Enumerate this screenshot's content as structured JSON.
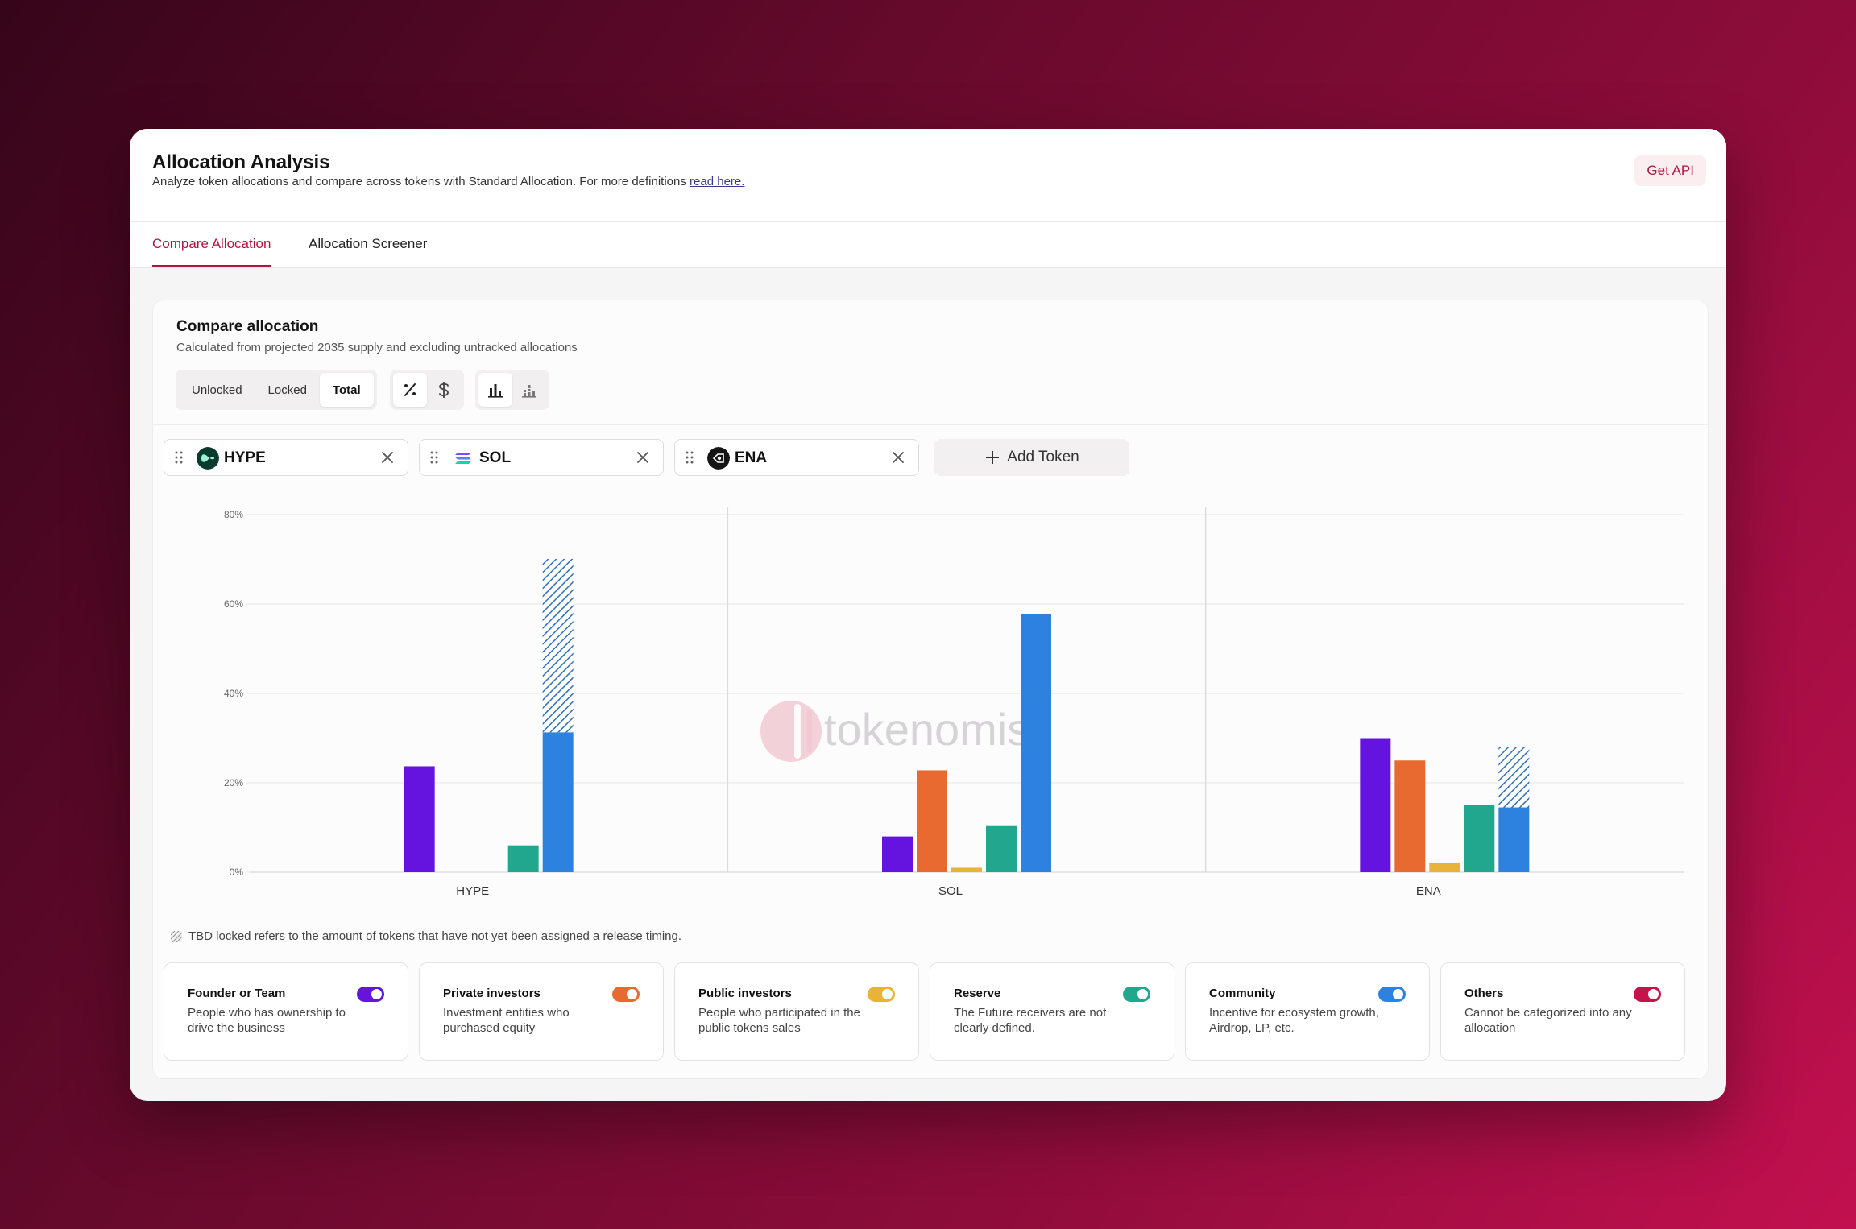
{
  "header": {
    "title": "Allocation Analysis",
    "subtitle": "Analyze token allocations and compare across tokens with Standard Allocation. For more definitions",
    "link_text": "read here.",
    "api_button": "Get API"
  },
  "tabs": [
    {
      "label": "Compare Allocation",
      "active": true
    },
    {
      "label": "Allocation Screener",
      "active": false
    }
  ],
  "card": {
    "title": "Compare allocation",
    "subtitle": "Calculated from projected 2035 supply and excluding untracked allocations"
  },
  "view_toggle": {
    "options": [
      "Unlocked",
      "Locked",
      "Total"
    ],
    "selected": "Total"
  },
  "unit_toggle": {
    "icons": [
      "percent-icon",
      "dollar-icon"
    ]
  },
  "chart_type_toggle": {
    "icons": [
      "grouped-bar-chart-icon",
      "stacked-bar-chart-icon"
    ],
    "selected": "grouped-bar-chart-icon"
  },
  "tokens": [
    {
      "symbol": "HYPE",
      "icon": "hype-logo-icon"
    },
    {
      "symbol": "SOL",
      "icon": "sol-logo-icon"
    },
    {
      "symbol": "ENA",
      "icon": "ena-logo-icon"
    }
  ],
  "add_token_label": "Add Token",
  "watermark": "tokenomist",
  "note": "TBD locked refers to the amount of tokens that have not yet been assigned a release timing.",
  "colors": {
    "founder": "#6514e0",
    "private": "#e86a30",
    "public": "#e9b339",
    "reserve": "#22a78f",
    "community": "#2d82e0",
    "others": "#c8134a",
    "accent": "#b0143f"
  },
  "chart_data": {
    "type": "bar",
    "categories": [
      "HYPE",
      "SOL",
      "ENA"
    ],
    "ylim": [
      0,
      80
    ],
    "yticks": [
      "0%",
      "20%",
      "40%",
      "60%",
      "80%"
    ],
    "series": [
      {
        "name": "Founder or Team",
        "color_key": "founder",
        "values": [
          23.7,
          8.0,
          30.0
        ]
      },
      {
        "name": "Private investors",
        "color_key": "private",
        "values": [
          0,
          22.8,
          25.0
        ]
      },
      {
        "name": "Public investors",
        "color_key": "public",
        "values": [
          0,
          1.0,
          2.0
        ]
      },
      {
        "name": "Reserve",
        "color_key": "reserve",
        "values": [
          6.0,
          10.5,
          15.0
        ]
      },
      {
        "name": "Community",
        "color_key": "community",
        "values": [
          31.3,
          57.8,
          14.5
        ]
      }
    ],
    "tbd_locked": {
      "series": "Community",
      "values": [
        38.8,
        0,
        13.5
      ]
    }
  },
  "legend": [
    {
      "title": "Founder or Team",
      "desc": "People who has ownership to drive the business",
      "color_key": "founder"
    },
    {
      "title": "Private investors",
      "desc": "Investment entities who purchased equity",
      "color_key": "private"
    },
    {
      "title": "Public investors",
      "desc": "People who participated in the public tokens sales",
      "color_key": "public"
    },
    {
      "title": "Reserve",
      "desc": "The Future receivers are not clearly defined.",
      "color_key": "reserve"
    },
    {
      "title": "Community",
      "desc": "Incentive for ecosystem growth, Airdrop, LP, etc.",
      "color_key": "community"
    },
    {
      "title": "Others",
      "desc": "Cannot be categorized into any allocation",
      "color_key": "others"
    }
  ]
}
